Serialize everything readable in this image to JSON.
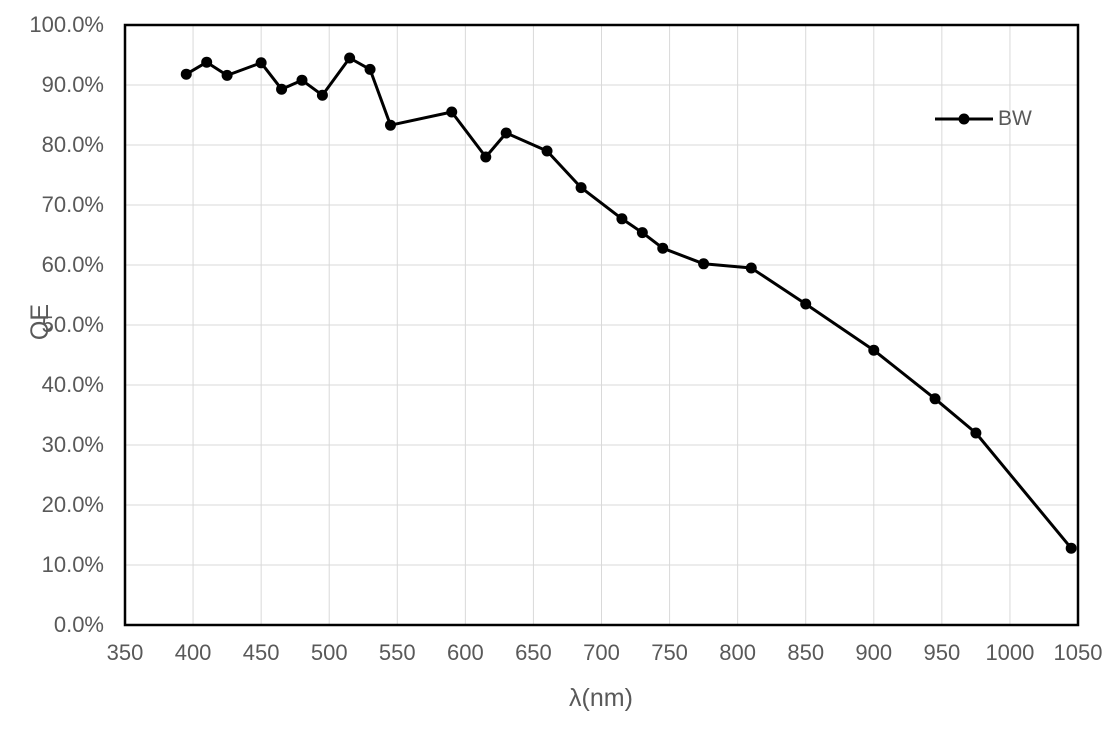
{
  "chart_data": {
    "type": "line",
    "title": "",
    "xlabel": "λ(nm)",
    "ylabel": "QE",
    "xlim": [
      350,
      1050
    ],
    "ylim": [
      0,
      100
    ],
    "grid": true,
    "x_ticks": [
      350,
      400,
      450,
      500,
      550,
      600,
      650,
      700,
      750,
      800,
      850,
      900,
      950,
      1000,
      1050
    ],
    "x_tick_labels": [
      "350",
      "400",
      "450",
      "500",
      "550",
      "600",
      "650",
      "700",
      "750",
      "800",
      "850",
      "900",
      "950",
      "1000",
      "1050"
    ],
    "y_ticks": [
      0,
      10,
      20,
      30,
      40,
      50,
      60,
      70,
      80,
      90,
      100
    ],
    "y_tick_labels": [
      "0.0%",
      "10.0%",
      "20.0%",
      "30.0%",
      "40.0%",
      "50.0%",
      "60.0%",
      "70.0%",
      "80.0%",
      "90.0%",
      "100.0%"
    ],
    "legend": {
      "position": "top-right-inside",
      "entries": [
        "BW"
      ]
    },
    "series": [
      {
        "name": "BW",
        "color": "#000000",
        "marker": "circle",
        "x": [
          395,
          410,
          425,
          450,
          465,
          480,
          495,
          515,
          530,
          545,
          590,
          615,
          630,
          660,
          685,
          715,
          730,
          745,
          775,
          810,
          850,
          900,
          945,
          975,
          1045
        ],
        "y": [
          91.8,
          93.8,
          91.6,
          93.7,
          89.3,
          90.8,
          88.3,
          94.5,
          92.6,
          83.3,
          85.5,
          78.0,
          82.0,
          79.0,
          72.9,
          67.7,
          65.4,
          62.8,
          60.2,
          59.5,
          53.5,
          45.8,
          37.7,
          32.0,
          12.8
        ]
      }
    ],
    "colors": {
      "background": "#ffffff",
      "axis_text": "#595959",
      "gridline": "#d9d9d9",
      "plot_border": "#000000",
      "series_line": "#000000"
    }
  }
}
